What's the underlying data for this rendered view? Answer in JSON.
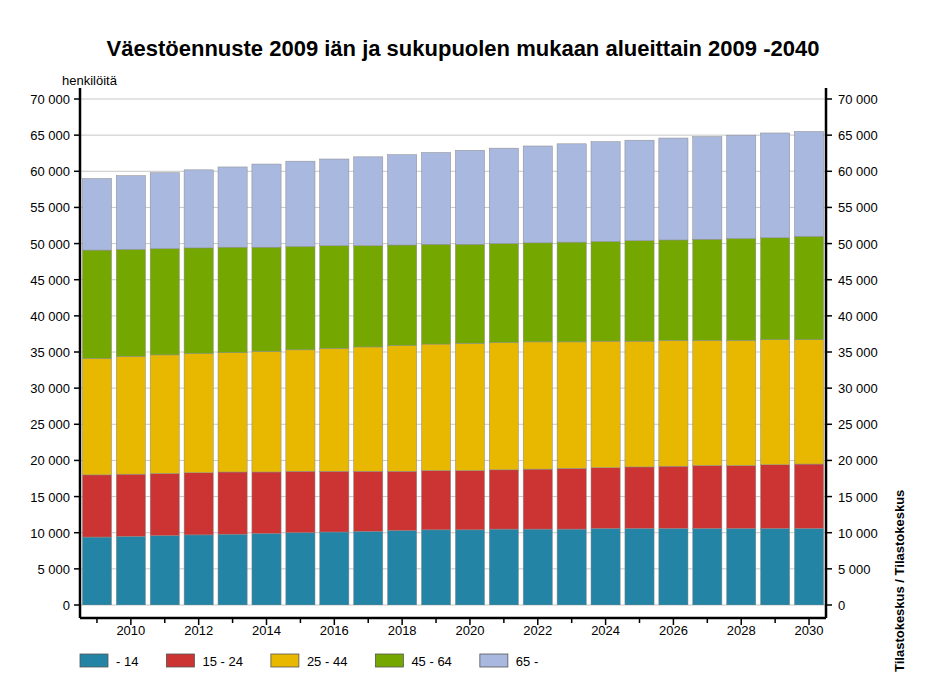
{
  "chart_data": {
    "type": "bar",
    "stacked": true,
    "grid": true,
    "legend": "bottom",
    "title": "Väestöennuste 2009 iän ja sukupuolen mukaan alueittain 2009 -2040",
    "y_label": "henkilöitä",
    "source": "Tilastokeskus / Tilastokeskus",
    "categories": [
      null,
      "2010",
      null,
      "2012",
      null,
      "2014",
      null,
      "2016",
      null,
      "2018",
      null,
      "2020",
      null,
      "2022",
      null,
      "2024",
      null,
      "2026",
      null,
      "2028",
      null,
      "2030"
    ],
    "ylim": [
      0,
      70000
    ],
    "yticks": [
      0,
      {
        "value": 5000,
        "label": "5 000"
      },
      {
        "value": 10000,
        "label": "10 000"
      },
      {
        "value": 15000,
        "label": "15 000"
      },
      {
        "value": 20000,
        "label": "20 000"
      },
      {
        "value": 25000,
        "label": "25 000"
      },
      {
        "value": 30000,
        "label": "30 000"
      },
      {
        "value": 35000,
        "label": "35 000"
      },
      {
        "value": 40000,
        "label": "40 000"
      },
      {
        "value": 45000,
        "label": "45 000"
      },
      {
        "value": 50000,
        "label": "50 000"
      },
      {
        "value": 55000,
        "label": "55 000"
      },
      {
        "value": 60000,
        "label": "60 000"
      },
      {
        "value": 65000,
        "label": "65 000"
      },
      {
        "value": 70000,
        "label": "70 000"
      }
    ],
    "series": [
      {
        "name": "- 14",
        "color": "#2384a6",
        "values": [
          9400,
          9500,
          9600,
          9700,
          9800,
          9900,
          10000,
          10100,
          10200,
          10300,
          10400,
          10400,
          10500,
          10500,
          10500,
          10600,
          10600,
          10600,
          10600,
          10600,
          10600,
          10600
        ]
      },
      {
        "name": "15 - 24",
        "color": "#cc3333",
        "values": [
          8600,
          8600,
          8600,
          8600,
          8600,
          8500,
          8500,
          8400,
          8300,
          8200,
          8200,
          8200,
          8200,
          8300,
          8400,
          8400,
          8500,
          8600,
          8700,
          8700,
          8800,
          8900
        ]
      },
      {
        "name": "25 - 44",
        "color": "#e8b800",
        "values": [
          16100,
          16300,
          16400,
          16500,
          16500,
          16700,
          16800,
          17000,
          17200,
          17400,
          17500,
          17600,
          17600,
          17600,
          17500,
          17500,
          17400,
          17400,
          17300,
          17300,
          17300,
          17200
        ]
      },
      {
        "name": "45 - 64",
        "color": "#74a800",
        "values": [
          15000,
          14800,
          14700,
          14600,
          14600,
          14400,
          14300,
          14200,
          14000,
          13900,
          13800,
          13700,
          13700,
          13700,
          13800,
          13800,
          13900,
          13900,
          14000,
          14100,
          14100,
          14300
        ]
      },
      {
        "name": "65 -",
        "color": "#a8b8de",
        "values": [
          9900,
          10200,
          10500,
          10800,
          11100,
          11500,
          11800,
          12000,
          12300,
          12500,
          12700,
          13000,
          13200,
          13400,
          13600,
          13800,
          13900,
          14100,
          14200,
          14300,
          14500,
          14500
        ]
      }
    ]
  }
}
